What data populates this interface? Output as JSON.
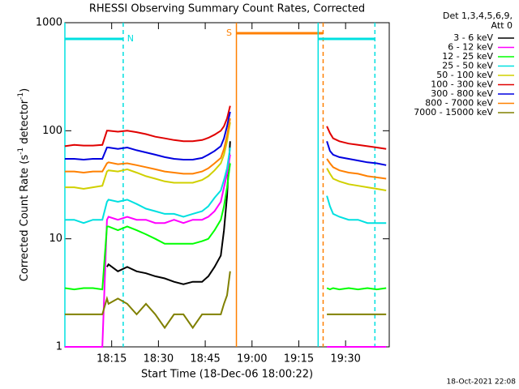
{
  "chart_data": {
    "type": "line",
    "title": "RHESSI Observing Summary Count Rates, Corrected",
    "x_label": "Start Time (18-Dec-06 18:00:22)",
    "y_label": [
      "Corrected Count Rate (s",
      "-1",
      " detector",
      "-1",
      ")"
    ],
    "legend_header": [
      "Det 1,3,4,5,6,9,",
      "Att 0"
    ],
    "footer": "18-Oct-2021 22:08",
    "log_y": true,
    "xlim": [
      0,
      104
    ],
    "xticks": [
      {
        "value": 15,
        "label": "18:15"
      },
      {
        "value": 30,
        "label": "18:30"
      },
      {
        "value": 45,
        "label": "18:45"
      },
      {
        "value": 60,
        "label": "19:00"
      },
      {
        "value": 75,
        "label": "19:15"
      },
      {
        "value": 90,
        "label": "19:30"
      }
    ],
    "ylim": [
      1,
      1000
    ],
    "yticks": [
      1,
      10,
      100,
      1000
    ],
    "periods": [
      {
        "label": "N",
        "color": "#00e0e0",
        "start": 0,
        "end": 18.7
      },
      {
        "label": "S",
        "color": "#ff8000",
        "start": 55,
        "end": 82.8
      },
      {
        "color": "#00e0e0",
        "start": 81.2,
        "end": 99.4
      }
    ],
    "x": [
      0,
      3,
      6,
      9,
      12,
      13.5,
      14,
      17,
      20,
      23,
      26,
      29,
      32,
      35,
      38,
      41,
      44,
      46,
      48,
      50,
      51,
      52,
      53,
      68,
      84,
      85,
      86,
      88,
      91,
      94,
      97,
      100,
      103
    ],
    "series": [
      {
        "name": "3 - 6 keV",
        "color": "#000000",
        "values": [
          null,
          null,
          null,
          null,
          null,
          5.5,
          5.8,
          5,
          5.5,
          5,
          4.8,
          4.5,
          4.3,
          4,
          3.8,
          4,
          4,
          4.5,
          5.5,
          7,
          12,
          25,
          80,
          null,
          null,
          null,
          null,
          null,
          null,
          null,
          null,
          null,
          null
        ]
      },
      {
        "name": "6 - 12 keV",
        "color": "#ff00ff",
        "values": [
          1,
          1,
          1,
          1,
          1,
          15,
          16,
          15,
          16,
          15,
          15,
          14,
          14,
          15,
          14,
          15,
          15,
          16,
          18,
          22,
          30,
          40,
          60,
          null,
          1,
          1,
          1,
          1,
          1,
          1,
          1,
          1,
          1
        ]
      },
      {
        "name": "12 - 25 keV",
        "color": "#00ff00",
        "values": [
          3.5,
          3.4,
          3.5,
          3.5,
          3.4,
          13,
          13,
          12,
          13,
          12,
          11,
          10,
          9,
          9,
          9,
          9,
          9.5,
          10,
          12,
          15,
          20,
          30,
          50,
          null,
          3.5,
          3.4,
          3.5,
          3.4,
          3.5,
          3.4,
          3.5,
          3.4,
          3.5
        ]
      },
      {
        "name": "25 - 50 keV",
        "color": "#00e0e0",
        "values": [
          15,
          15,
          14,
          15,
          15,
          22,
          23,
          22,
          23,
          21,
          19,
          18,
          17,
          17,
          16,
          17,
          18,
          20,
          24,
          28,
          35,
          45,
          70,
          null,
          25,
          20,
          17,
          16,
          15,
          15,
          14,
          14,
          14
        ]
      },
      {
        "name": "50 - 100 keV",
        "color": "#d0d000",
        "values": [
          30,
          30,
          29,
          30,
          31,
          42,
          43,
          42,
          44,
          41,
          38,
          36,
          34,
          33,
          33,
          33,
          35,
          38,
          43,
          50,
          60,
          80,
          120,
          null,
          45,
          40,
          36,
          34,
          32,
          31,
          30,
          29,
          28
        ]
      },
      {
        "name": "100 - 300 keV",
        "color": "#e00000",
        "values": [
          72,
          74,
          73,
          73,
          74,
          100,
          100,
          98,
          100,
          97,
          93,
          88,
          85,
          82,
          80,
          80,
          82,
          86,
          92,
          100,
          110,
          130,
          170,
          null,
          110,
          95,
          85,
          80,
          76,
          74,
          72,
          70,
          68
        ]
      },
      {
        "name": "300 - 800 keV",
        "color": "#0000e0",
        "values": [
          55,
          55,
          54,
          55,
          55,
          70,
          70,
          68,
          70,
          66,
          63,
          60,
          57,
          55,
          54,
          54,
          56,
          60,
          65,
          72,
          85,
          110,
          150,
          null,
          80,
          65,
          60,
          57,
          55,
          53,
          51,
          50,
          48
        ]
      },
      {
        "name": "800 - 7000 keV",
        "color": "#ff8000",
        "values": [
          42,
          42,
          41,
          42,
          42,
          50,
          51,
          49,
          50,
          48,
          46,
          44,
          42,
          41,
          40,
          40,
          42,
          45,
          50,
          56,
          68,
          90,
          130,
          null,
          55,
          50,
          46,
          43,
          41,
          40,
          38,
          37,
          36
        ]
      },
      {
        "name": "7000 - 15000 keV",
        "color": "#808000",
        "values": [
          2,
          2,
          2,
          2,
          2,
          2.8,
          2.5,
          2.8,
          2.5,
          2,
          2.5,
          2,
          1.5,
          2,
          2,
          1.5,
          2,
          2,
          2,
          2,
          2.5,
          3,
          5,
          null,
          2,
          2,
          2,
          2,
          2,
          2,
          2,
          2,
          2
        ]
      }
    ]
  }
}
